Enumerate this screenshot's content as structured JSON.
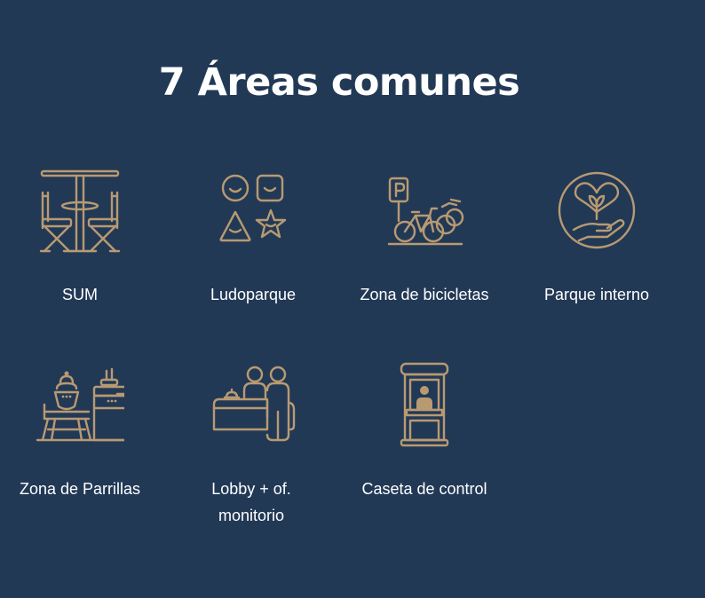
{
  "section": {
    "title": "7 Áreas comunes"
  },
  "icon_color": "#b89a72",
  "background_color": "#223956",
  "amenities": [
    {
      "label": "SUM",
      "icon": "table-chairs-icon"
    },
    {
      "label": "Ludoparque",
      "icon": "play-shapes-icon"
    },
    {
      "label": "Zona de bicicletas",
      "icon": "bicycle-parking-icon"
    },
    {
      "label": "Parque interno",
      "icon": "heart-plant-icon"
    },
    {
      "label": "Zona de Parrillas",
      "icon": "grill-area-icon"
    },
    {
      "label": "Lobby + of. monitorio",
      "icon": "reception-desk-icon"
    },
    {
      "label": "Caseta de control",
      "icon": "security-booth-icon"
    }
  ]
}
